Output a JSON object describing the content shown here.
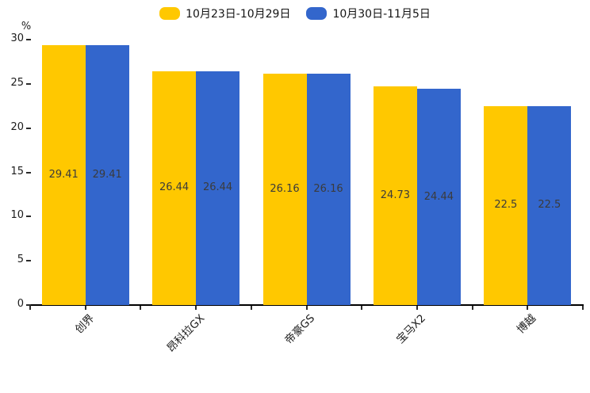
{
  "chart_data": {
    "type": "bar",
    "title": "",
    "ylabel": "%",
    "ylim": [
      0,
      30
    ],
    "yticks": [
      0,
      5,
      10,
      15,
      20,
      25,
      30
    ],
    "categories": [
      "创界",
      "昂科拉GX",
      "帝豪GS",
      "宝马X2",
      "博越"
    ],
    "series": [
      {
        "name": "10月23日-10月29日",
        "color": "#FFC800",
        "values": [
          29.41,
          26.44,
          26.16,
          24.73,
          22.5
        ]
      },
      {
        "name": "10月30日-11月5日",
        "color": "#3366CC",
        "values": [
          29.41,
          26.44,
          26.16,
          24.44,
          22.5
        ]
      }
    ],
    "value_labels_shown": true,
    "legend_position": "top-center",
    "grid": false,
    "axis_color": "#000000",
    "value_label_color": "#3b3b3b"
  }
}
